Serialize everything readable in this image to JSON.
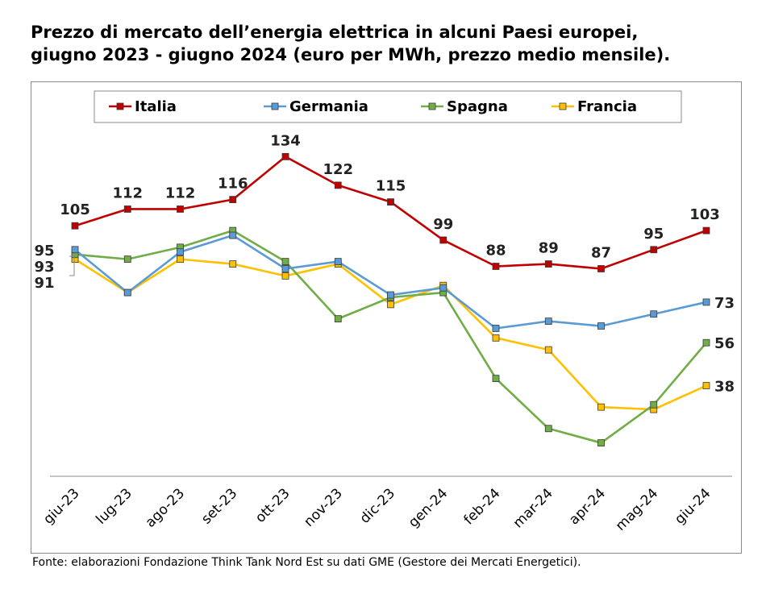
{
  "title_line1": "Prezzo di mercato dell’energia elettrica in alcuni Paesi europei,",
  "title_line2": "giugno 2023 - giugno 2024 (euro per MWh, prezzo medio mensile).",
  "source": "Fonte: elaborazioni Fondazione Think Tank Nord Est su dati GME (Gestore dei Mercati Energetici).",
  "chart_data": {
    "type": "line",
    "title": "Prezzo di mercato dell’energia elettrica in alcuni Paesi europei, giugno 2023 - giugno 2024 (euro per MWh, prezzo medio mensile).",
    "categories": [
      "giu-23",
      "lug-23",
      "ago-23",
      "set-23",
      "ott-23",
      "nov-23",
      "dic-23",
      "gen-24",
      "feb-24",
      "mar-24",
      "apr-24",
      "mag-24",
      "giu-24"
    ],
    "ylim": [
      0,
      145
    ],
    "grid": false,
    "legend_position": "top",
    "series": [
      {
        "name": "Italia",
        "color": "#C00000",
        "values": [
          105,
          112,
          112,
          116,
          134,
          122,
          115,
          99,
          88,
          89,
          87,
          95,
          103
        ]
      },
      {
        "name": "Germania",
        "color": "#5B9BD5",
        "values": [
          95,
          77,
          94,
          101,
          87,
          90,
          76,
          79,
          62,
          65,
          63,
          68,
          73
        ]
      },
      {
        "name": "Spagna",
        "color": "#70AD47",
        "values": [
          93,
          91,
          96,
          103,
          90,
          66,
          75,
          77,
          41,
          20,
          14,
          30,
          56
        ]
      },
      {
        "name": "Francia",
        "color": "#FFC000",
        "values": [
          91,
          77,
          91,
          89,
          84,
          89,
          72,
          80,
          58,
          53,
          29,
          28,
          38
        ]
      }
    ],
    "data_labels": {
      "Italia": [
        "105",
        "112",
        "112",
        "116",
        "134",
        "122",
        "115",
        "99",
        "88",
        "89",
        "87",
        "95",
        "103"
      ],
      "Germania_end": "73",
      "Spagna_end": "56",
      "Francia_end": "38",
      "start_labels": [
        "95",
        "93",
        "91"
      ]
    }
  }
}
